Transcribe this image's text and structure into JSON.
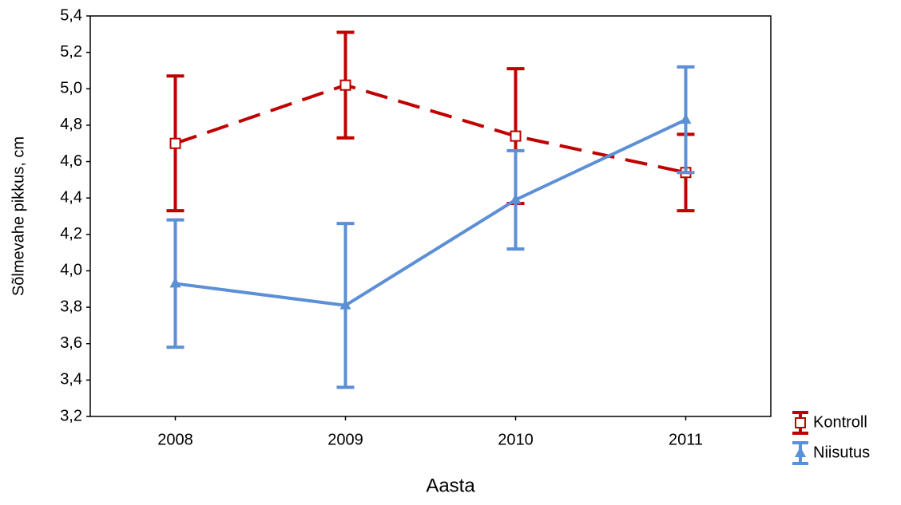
{
  "chart_data": {
    "type": "line",
    "x_label": "Aasta",
    "y_label": "Sõlmevahe pikkus, cm",
    "categories": [
      "2008",
      "2009",
      "2010",
      "2011"
    ],
    "ylim": [
      3.2,
      5.4
    ],
    "yticks": [
      {
        "value": 3.2,
        "label": "3,2"
      },
      {
        "value": 3.4,
        "label": "3,4"
      },
      {
        "value": 3.6,
        "label": "3,6"
      },
      {
        "value": 3.8,
        "label": "3,8"
      },
      {
        "value": 4.0,
        "label": "4,0"
      },
      {
        "value": 4.2,
        "label": "4,2"
      },
      {
        "value": 4.4,
        "label": "4,4"
      },
      {
        "value": 4.6,
        "label": "4,6"
      },
      {
        "value": 4.8,
        "label": "4,8"
      },
      {
        "value": 5.0,
        "label": "5,0"
      },
      {
        "value": 5.2,
        "label": "5,2"
      },
      {
        "value": 5.4,
        "label": "5,4"
      }
    ],
    "grid": false,
    "legend": "bottom-right",
    "series": [
      {
        "name": "Kontroll",
        "color": "#c00000",
        "dash": true,
        "marker": "square",
        "values": [
          4.7,
          5.02,
          4.74,
          4.54
        ],
        "errors": [
          0.37,
          0.29,
          0.37,
          0.21
        ]
      },
      {
        "name": "Niisutus",
        "color": "#5b8fd6",
        "dash": false,
        "marker": "triangle",
        "values": [
          3.93,
          3.81,
          4.39,
          4.83
        ],
        "errors": [
          0.35,
          0.45,
          0.27,
          0.29
        ]
      }
    ]
  }
}
